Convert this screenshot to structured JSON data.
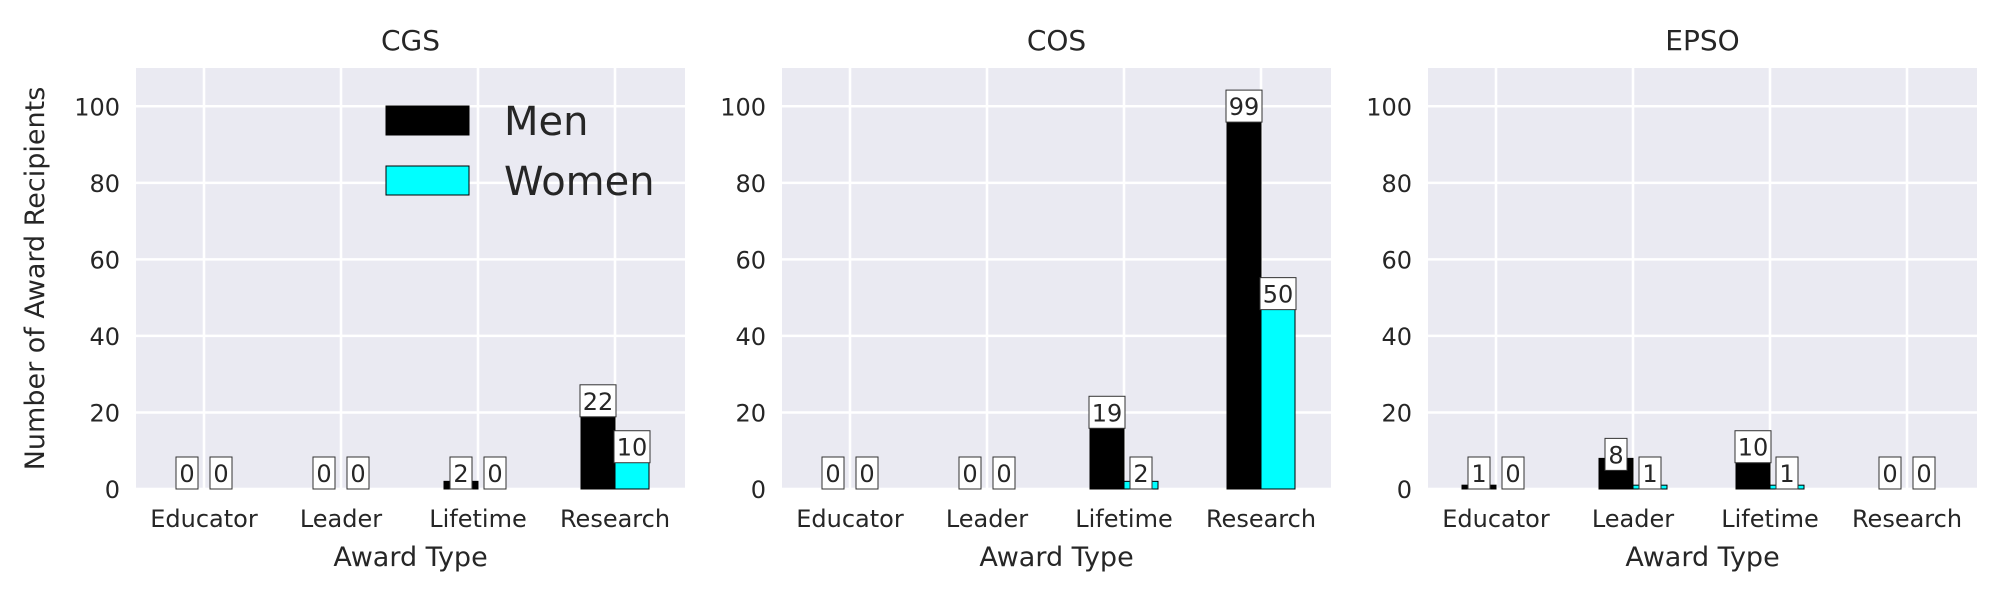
{
  "chart_data": [
    {
      "type": "bar",
      "title": "CGS",
      "xlabel": "Award Type",
      "ylabel": "Number of Award Recipients",
      "categories": [
        "Educator",
        "Leader",
        "Lifetime",
        "Research"
      ],
      "series": [
        {
          "name": "Men",
          "values": [
            0,
            0,
            2,
            22
          ],
          "color": "#000000"
        },
        {
          "name": "Women",
          "values": [
            0,
            0,
            0,
            10
          ],
          "color": "#00ffff"
        }
      ],
      "ylim": [
        0,
        110
      ],
      "yticks": [
        "0",
        "20",
        "40",
        "60",
        "80",
        "100"
      ],
      "legend": "top-right",
      "grid": true
    },
    {
      "type": "bar",
      "title": "COS",
      "xlabel": "Award Type",
      "ylabel": "",
      "categories": [
        "Educator",
        "Leader",
        "Lifetime",
        "Research"
      ],
      "series": [
        {
          "name": "Men",
          "values": [
            0,
            0,
            19,
            99
          ],
          "color": "#000000"
        },
        {
          "name": "Women",
          "values": [
            0,
            0,
            2,
            50
          ],
          "color": "#00ffff"
        }
      ],
      "ylim": [
        0,
        110
      ],
      "yticks": [
        "0",
        "20",
        "40",
        "60",
        "80",
        "100"
      ],
      "grid": true
    },
    {
      "type": "bar",
      "title": "EPSO",
      "xlabel": "Award Type",
      "ylabel": "",
      "categories": [
        "Educator",
        "Leader",
        "Lifetime",
        "Research"
      ],
      "series": [
        {
          "name": "Men",
          "values": [
            1,
            8,
            10,
            0
          ],
          "color": "#000000"
        },
        {
          "name": "Women",
          "values": [
            0,
            1,
            1,
            0
          ],
          "color": "#00ffff"
        }
      ],
      "ylim": [
        0,
        110
      ],
      "yticks": [
        "0",
        "20",
        "40",
        "60",
        "80",
        "100"
      ],
      "grid": true
    }
  ]
}
